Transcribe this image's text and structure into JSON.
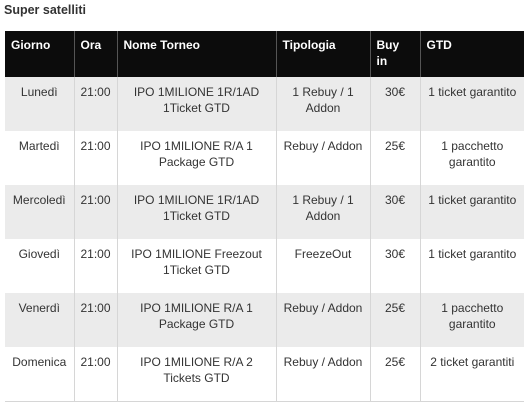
{
  "section_title": "Super satelliti",
  "table": {
    "headers": {
      "day": "Giorno",
      "time": "Ora",
      "name": "Nome Torneo",
      "type": "Tipologia",
      "buyin": "Buy in",
      "gtd": "GTD"
    },
    "rows": [
      {
        "day": "Lunedì",
        "time": "21:00",
        "name": "IPO 1MILIONE 1R/1AD 1Ticket GTD",
        "type": "1 Rebuy / 1 Addon",
        "buyin": "30€",
        "gtd": "1 ticket garantito"
      },
      {
        "day": "Martedì",
        "time": "21:00",
        "name": "IPO 1MILIONE R/A 1 Package GTD",
        "type": "Rebuy / Addon",
        "buyin": "25€",
        "gtd": "1 pacchetto garantito"
      },
      {
        "day": "Mercoledì",
        "time": "21:00",
        "name": "IPO 1MILIONE 1R/1AD 1Ticket GTD",
        "type": "1 Rebuy / 1 Addon",
        "buyin": "30€",
        "gtd": "1 ticket garantito"
      },
      {
        "day": "Giovedì",
        "time": "21:00",
        "name": "IPO 1MILIONE Freezout 1Ticket GTD",
        "type": "FreezeOut",
        "buyin": "30€",
        "gtd": "1 ticket garantito"
      },
      {
        "day": "Venerdì",
        "time": "21:00",
        "name": "IPO 1MILIONE R/A 1 Package GTD",
        "type": "Rebuy / Addon",
        "buyin": "25€",
        "gtd": "1 pacchetto garantito"
      },
      {
        "day": "Domenica",
        "time": "21:00",
        "name": "IPO 1MILIONE R/A 2 Tickets GTD",
        "type": "Rebuy / Addon",
        "buyin": "25€",
        "gtd": "2 ticket garantiti"
      }
    ]
  }
}
